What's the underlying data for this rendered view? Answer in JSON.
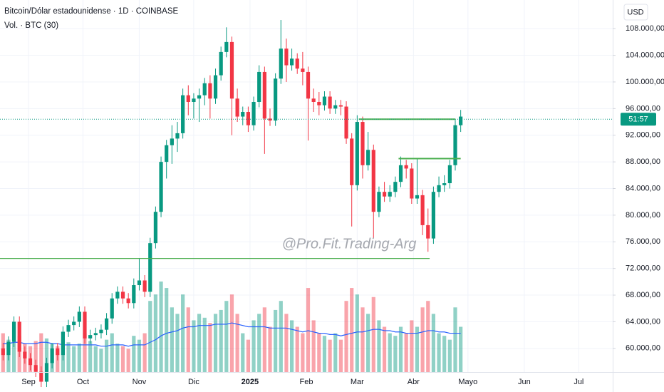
{
  "chart_data": {
    "type": "candlestick",
    "title": "Bitcoin/Dólar estadounidense · 1D · COINBASE",
    "subtitle": "Vol. · BTC (30)",
    "currency": "USD",
    "watermark": "@Pro.Fit.Trading-Arg",
    "up_color": "#089981",
    "down_color": "#f23645",
    "ma_color": "#2962ff",
    "level_color": "#4caf50",
    "grid": true,
    "open": [
      60000,
      59000,
      61000,
      64000,
      59500,
      58500,
      57500,
      56500,
      55000,
      57800,
      60000,
      59000,
      62500,
      63500,
      64000,
      65500,
      61500,
      62000,
      62300,
      62800,
      64500,
      67500,
      68500,
      67500,
      66800,
      69500,
      70200,
      68500,
      75800,
      80500,
      88000,
      90500,
      91500,
      92300,
      98000,
      97000,
      97500,
      98000,
      99800,
      97500,
      101000,
      104500,
      106000,
      97500,
      94800,
      95500,
      93500,
      97000,
      101500,
      94500,
      94200,
      100500,
      105000,
      102500,
      103500,
      102000,
      101500,
      97500,
      97000,
      96500,
      97800,
      96000,
      96500,
      96300,
      91500,
      84500,
      94000,
      87500,
      89800,
      80500,
      83500,
      82800,
      83500,
      85000,
      87500,
      87000,
      82500,
      83000,
      78500,
      76500,
      83500,
      84500,
      84800,
      87500,
      93500
    ],
    "high": [
      60800,
      61800,
      64800,
      64800,
      60300,
      59300,
      58300,
      57300,
      58600,
      60800,
      60800,
      63300,
      64300,
      64800,
      66300,
      66300,
      62800,
      63100,
      63600,
      65300,
      68300,
      69300,
      69300,
      68300,
      70500,
      73500,
      71000,
      76600,
      81300,
      88800,
      91300,
      93500,
      94000,
      99000,
      99500,
      98300,
      99000,
      100600,
      101000,
      102000,
      105300,
      108200,
      106800,
      99000,
      96300,
      96300,
      97800,
      102500,
      102300,
      96000,
      101300,
      109300,
      106500,
      105000,
      104300,
      104500,
      102300,
      99000,
      98500,
      98600,
      98600,
      97300,
      97300,
      97100,
      92300,
      95000,
      94800,
      92500,
      90600,
      84300,
      85000,
      84500,
      85800,
      88800,
      88300,
      87800,
      88500,
      83800,
      81000,
      84300,
      85800,
      86000,
      88300,
      94300,
      95800
    ],
    "low": [
      58200,
      58200,
      60200,
      58700,
      57700,
      56700,
      55700,
      54200,
      54200,
      57000,
      58200,
      58200,
      61700,
      62700,
      63200,
      60700,
      60700,
      61200,
      61500,
      62000,
      63700,
      66700,
      66700,
      66000,
      66000,
      68700,
      67700,
      67700,
      75000,
      79700,
      85500,
      87700,
      89500,
      91500,
      95000,
      94500,
      94000,
      96500,
      94500,
      96700,
      100200,
      103700,
      92000,
      94000,
      93500,
      92500,
      92700,
      96200,
      89200,
      93400,
      93400,
      99700,
      100000,
      101700,
      101200,
      99500,
      91200,
      95500,
      95000,
      95700,
      95200,
      95200,
      95000,
      90700,
      78300,
      83700,
      85500,
      86700,
      76600,
      79700,
      82000,
      82000,
      82700,
      84200,
      85500,
      81700,
      81700,
      77000,
      74500,
      75700,
      82700,
      83500,
      84000,
      86700,
      92500
    ],
    "close": [
      59000,
      61000,
      64000,
      59500,
      58500,
      57500,
      56500,
      55000,
      57800,
      60000,
      59000,
      62500,
      63500,
      64000,
      65500,
      61500,
      62000,
      62300,
      62800,
      64500,
      67500,
      68500,
      67500,
      66800,
      69500,
      70200,
      68500,
      75800,
      80500,
      88000,
      90500,
      91500,
      92300,
      98000,
      97000,
      97500,
      98000,
      99800,
      97500,
      101000,
      104500,
      106000,
      97500,
      94800,
      95500,
      93500,
      97000,
      101500,
      94500,
      94200,
      100500,
      105000,
      102500,
      103500,
      102000,
      101500,
      97500,
      97000,
      96500,
      97800,
      96000,
      96500,
      96300,
      91500,
      84500,
      94000,
      87500,
      89800,
      80500,
      83500,
      82800,
      83500,
      85000,
      87500,
      87000,
      82500,
      83000,
      78500,
      76500,
      83500,
      84500,
      84800,
      87500,
      93500,
      94800
    ],
    "volume": [
      30,
      25,
      35,
      28,
      22,
      20,
      24,
      30,
      26,
      22,
      20,
      25,
      23,
      20,
      22,
      30,
      24,
      20,
      18,
      25,
      30,
      22,
      20,
      18,
      28,
      25,
      30,
      55,
      60,
      70,
      65,
      50,
      45,
      60,
      50,
      40,
      45,
      42,
      38,
      45,
      48,
      55,
      60,
      45,
      30,
      25,
      40,
      45,
      50,
      35,
      48,
      55,
      45,
      40,
      35,
      30,
      65,
      40,
      30,
      28,
      25,
      30,
      25,
      55,
      65,
      60,
      50,
      45,
      58,
      40,
      35,
      30,
      28,
      35,
      30,
      40,
      35,
      50,
      55,
      45,
      30,
      28,
      25,
      50,
      35
    ],
    "volume_ma": [
      22,
      22,
      23,
      23,
      22,
      22,
      22,
      23,
      23,
      22,
      22,
      21,
      21,
      21,
      21,
      21,
      21,
      21,
      20,
      20,
      21,
      21,
      21,
      20,
      21,
      21,
      21,
      23,
      25,
      28,
      30,
      31,
      32,
      34,
      35,
      35,
      36,
      36,
      36,
      37,
      37,
      37,
      38,
      37,
      36,
      35,
      35,
      35,
      35,
      34,
      34,
      34,
      34,
      33,
      32,
      31,
      32,
      31,
      30,
      30,
      29,
      29,
      28,
      29,
      30,
      31,
      31,
      32,
      33,
      33,
      32,
      32,
      31,
      31,
      30,
      30,
      30,
      31,
      32,
      32,
      31,
      31,
      30,
      30,
      30
    ],
    "ylim": [
      56450,
      112300
    ],
    "yticks": [
      {
        "value": 60000,
        "label": "60.000,00"
      },
      {
        "value": 64000,
        "label": "64.000,00"
      },
      {
        "value": 68000,
        "label": "68.000,00"
      },
      {
        "value": 72000,
        "label": "72.000,00"
      },
      {
        "value": 76000,
        "label": "76.000,00"
      },
      {
        "value": 80000,
        "label": "80.000,00"
      },
      {
        "value": 84000,
        "label": "84.000,00"
      },
      {
        "value": 88000,
        "label": "88.000,00"
      },
      {
        "value": 92000,
        "label": "92.000,00"
      },
      {
        "value": 96000,
        "label": "96.000,00"
      },
      {
        "value": 100000,
        "label": "100.000,00"
      },
      {
        "value": 104000,
        "label": "104.000,00"
      },
      {
        "value": 108000,
        "label": "108.000,00"
      }
    ],
    "xlim": [
      -0.56,
      111.9
    ],
    "xticks": [
      {
        "value": 4.67,
        "label": "Sep"
      },
      {
        "value": 14.67,
        "label": "Oct"
      },
      {
        "value": 25,
        "label": "Nov"
      },
      {
        "value": 35,
        "label": "Dic"
      },
      {
        "value": 45.33,
        "label": "2025"
      },
      {
        "value": 55.67,
        "label": "Feb"
      },
      {
        "value": 65,
        "label": "Mar"
      },
      {
        "value": 75.33,
        "label": "Abr"
      },
      {
        "value": 85.33,
        "label": "Mayo"
      },
      {
        "value": 95.67,
        "label": "Jun"
      },
      {
        "value": 105.67,
        "label": "Jul"
      }
    ],
    "levels": [
      {
        "value": 73500,
        "from": -0.56,
        "to": 78.3
      },
      {
        "value": 94400,
        "from": 65.3,
        "to": 83
      },
      {
        "value": 88500,
        "from": 72.6,
        "to": 84
      }
    ],
    "price_line": {
      "value": 94400,
      "label": "51:57"
    }
  }
}
